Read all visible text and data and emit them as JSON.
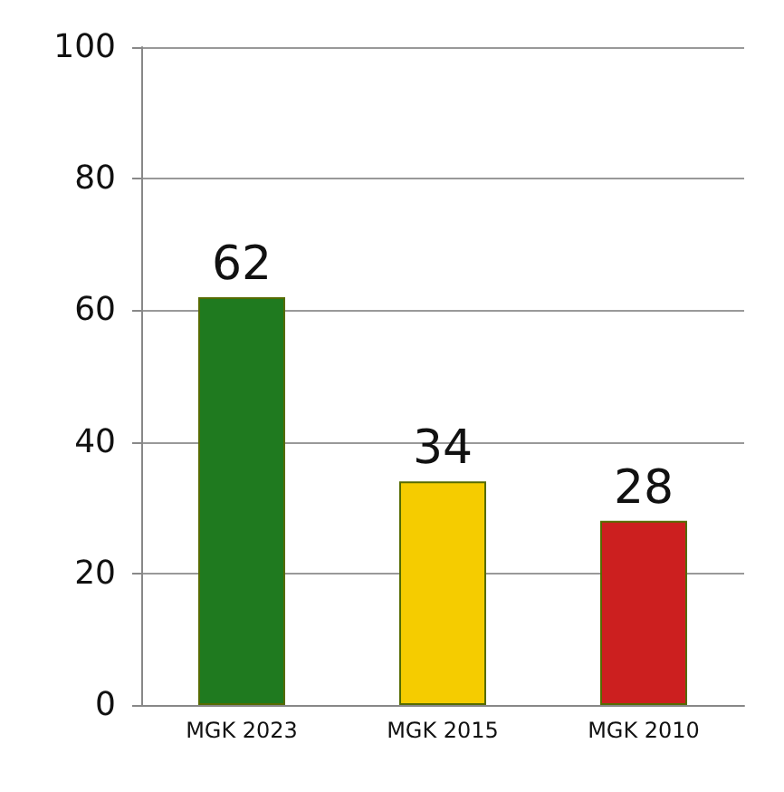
{
  "chart_data": {
    "type": "bar",
    "categories": [
      "MGK 2023",
      "MGK 2015",
      "MGK 2010"
    ],
    "values": [
      62,
      34,
      28
    ],
    "colors": [
      "#1f7a1f",
      "#f5cc00",
      "#cc1f1f"
    ],
    "ylim": [
      0,
      100
    ],
    "yticks": [
      0,
      20,
      40,
      60,
      80,
      100
    ],
    "grid": "y",
    "data_labels": true
  }
}
